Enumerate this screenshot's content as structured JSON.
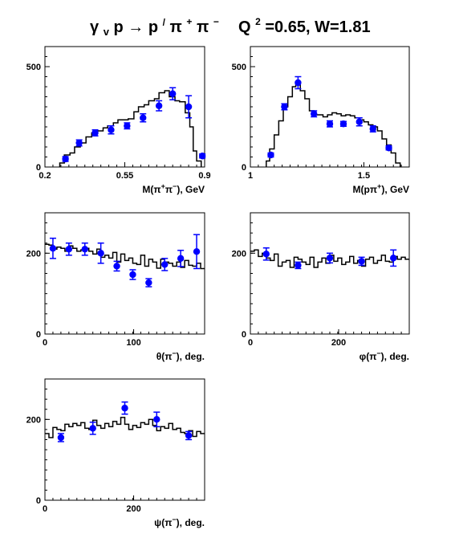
{
  "title": {
    "reaction_lhs": "γ",
    "reaction_lhs_sub": "v",
    "reaction_mid": "p → p",
    "reaction_prime": "/",
    "reaction_pi1": "π",
    "reaction_pi1_sup": "+",
    "reaction_pi2": "π",
    "reaction_pi2_sup": "−",
    "q2_label": "Q",
    "q2_sup": "2",
    "q2_value": "=0.65, W=1.81"
  },
  "colors": {
    "data_points": "#0000ff",
    "histogram": "#000000"
  },
  "chart_data": [
    {
      "type": "scatter",
      "panel": "m-pipi",
      "xlabel": "M(π+π−), GeV",
      "xlim": [
        0.2,
        0.9
      ],
      "ylim": [
        0,
        600
      ],
      "x_ticks": [
        {
          "v": 0.2,
          "label": "0.2"
        },
        {
          "v": 0.55,
          "label": "0.55"
        },
        {
          "v": 0.9,
          "label": "0.9"
        }
      ],
      "y_ticks": [
        {
          "v": 0,
          "label": "0"
        },
        {
          "v": 500,
          "label": "500"
        }
      ],
      "points": [
        {
          "x": 0.29,
          "y": 40,
          "err": 12
        },
        {
          "x": 0.35,
          "y": 120,
          "err": 15
        },
        {
          "x": 0.42,
          "y": 170,
          "err": 15
        },
        {
          "x": 0.49,
          "y": 185,
          "err": 20
        },
        {
          "x": 0.56,
          "y": 205,
          "err": 15
        },
        {
          "x": 0.63,
          "y": 245,
          "err": 20
        },
        {
          "x": 0.7,
          "y": 305,
          "err": 25
        },
        {
          "x": 0.76,
          "y": 365,
          "err": 30
        },
        {
          "x": 0.83,
          "y": 300,
          "err": 55
        },
        {
          "x": 0.89,
          "y": 55,
          "err": 10
        }
      ],
      "histogram": [
        {
          "x0": 0.265,
          "x1": 0.285,
          "y": 20
        },
        {
          "x0": 0.285,
          "x1": 0.31,
          "y": 60
        },
        {
          "x0": 0.31,
          "x1": 0.33,
          "y": 70
        },
        {
          "x0": 0.33,
          "x1": 0.355,
          "y": 100
        },
        {
          "x0": 0.355,
          "x1": 0.38,
          "y": 120
        },
        {
          "x0": 0.38,
          "x1": 0.405,
          "y": 150
        },
        {
          "x0": 0.405,
          "x1": 0.43,
          "y": 170
        },
        {
          "x0": 0.43,
          "x1": 0.455,
          "y": 180
        },
        {
          "x0": 0.455,
          "x1": 0.475,
          "y": 195
        },
        {
          "x0": 0.475,
          "x1": 0.5,
          "y": 205
        },
        {
          "x0": 0.5,
          "x1": 0.52,
          "y": 220
        },
        {
          "x0": 0.52,
          "x1": 0.545,
          "y": 235
        },
        {
          "x0": 0.545,
          "x1": 0.565,
          "y": 235
        },
        {
          "x0": 0.565,
          "x1": 0.59,
          "y": 240
        },
        {
          "x0": 0.59,
          "x1": 0.61,
          "y": 275
        },
        {
          "x0": 0.61,
          "x1": 0.635,
          "y": 300
        },
        {
          "x0": 0.635,
          "x1": 0.655,
          "y": 310
        },
        {
          "x0": 0.655,
          "x1": 0.68,
          "y": 330
        },
        {
          "x0": 0.68,
          "x1": 0.7,
          "y": 340
        },
        {
          "x0": 0.7,
          "x1": 0.725,
          "y": 370
        },
        {
          "x0": 0.725,
          "x1": 0.745,
          "y": 380
        },
        {
          "x0": 0.745,
          "x1": 0.77,
          "y": 350
        },
        {
          "x0": 0.77,
          "x1": 0.79,
          "y": 330
        },
        {
          "x0": 0.79,
          "x1": 0.815,
          "y": 325
        },
        {
          "x0": 0.815,
          "x1": 0.835,
          "y": 270
        },
        {
          "x0": 0.835,
          "x1": 0.85,
          "y": 200
        },
        {
          "x0": 0.85,
          "x1": 0.865,
          "y": 80
        },
        {
          "x0": 0.865,
          "x1": 0.885,
          "y": 30
        }
      ]
    },
    {
      "type": "scatter",
      "panel": "m-ppi",
      "xlabel": "M(pπ+), GeV",
      "xlim": [
        1.0,
        1.7
      ],
      "ylim": [
        0,
        600
      ],
      "x_ticks": [
        {
          "v": 1.0,
          "label": "1"
        },
        {
          "v": 1.5,
          "label": "1.5"
        }
      ],
      "y_ticks": [
        {
          "v": 0,
          "label": "0"
        },
        {
          "v": 500,
          "label": "500"
        }
      ],
      "points": [
        {
          "x": 1.09,
          "y": 60,
          "err": 10
        },
        {
          "x": 1.15,
          "y": 300,
          "err": 15
        },
        {
          "x": 1.21,
          "y": 420,
          "err": 30
        },
        {
          "x": 1.28,
          "y": 265,
          "err": 15
        },
        {
          "x": 1.35,
          "y": 215,
          "err": 15
        },
        {
          "x": 1.41,
          "y": 215,
          "err": 12
        },
        {
          "x": 1.48,
          "y": 225,
          "err": 20
        },
        {
          "x": 1.54,
          "y": 190,
          "err": 15
        },
        {
          "x": 1.61,
          "y": 95,
          "err": 10
        }
      ],
      "histogram": [
        {
          "x0": 1.07,
          "x1": 1.085,
          "y": 30
        },
        {
          "x0": 1.085,
          "x1": 1.105,
          "y": 90
        },
        {
          "x0": 1.105,
          "x1": 1.125,
          "y": 160
        },
        {
          "x0": 1.125,
          "x1": 1.145,
          "y": 230
        },
        {
          "x0": 1.145,
          "x1": 1.165,
          "y": 300
        },
        {
          "x0": 1.165,
          "x1": 1.185,
          "y": 350
        },
        {
          "x0": 1.185,
          "x1": 1.2,
          "y": 400
        },
        {
          "x0": 1.2,
          "x1": 1.22,
          "y": 410
        },
        {
          "x0": 1.22,
          "x1": 1.24,
          "y": 380
        },
        {
          "x0": 1.24,
          "x1": 1.26,
          "y": 340
        },
        {
          "x0": 1.26,
          "x1": 1.28,
          "y": 280
        },
        {
          "x0": 1.28,
          "x1": 1.3,
          "y": 260
        },
        {
          "x0": 1.3,
          "x1": 1.32,
          "y": 260
        },
        {
          "x0": 1.32,
          "x1": 1.34,
          "y": 250
        },
        {
          "x0": 1.34,
          "x1": 1.36,
          "y": 260
        },
        {
          "x0": 1.36,
          "x1": 1.38,
          "y": 270
        },
        {
          "x0": 1.38,
          "x1": 1.4,
          "y": 265
        },
        {
          "x0": 1.4,
          "x1": 1.42,
          "y": 255
        },
        {
          "x0": 1.42,
          "x1": 1.44,
          "y": 260
        },
        {
          "x0": 1.44,
          "x1": 1.46,
          "y": 255
        },
        {
          "x0": 1.46,
          "x1": 1.48,
          "y": 245
        },
        {
          "x0": 1.48,
          "x1": 1.5,
          "y": 235
        },
        {
          "x0": 1.5,
          "x1": 1.52,
          "y": 225
        },
        {
          "x0": 1.52,
          "x1": 1.54,
          "y": 210
        },
        {
          "x0": 1.54,
          "x1": 1.56,
          "y": 200
        },
        {
          "x0": 1.56,
          "x1": 1.58,
          "y": 180
        },
        {
          "x0": 1.58,
          "x1": 1.6,
          "y": 140
        },
        {
          "x0": 1.6,
          "x1": 1.62,
          "y": 110
        },
        {
          "x0": 1.62,
          "x1": 1.64,
          "y": 70
        },
        {
          "x0": 1.64,
          "x1": 1.66,
          "y": 20
        }
      ]
    },
    {
      "type": "scatter",
      "panel": "theta",
      "xlabel": "θ(π−), deg.",
      "xlim": [
        0,
        180
      ],
      "ylim": [
        0,
        300
      ],
      "x_ticks": [
        {
          "v": 0,
          "label": "0"
        },
        {
          "v": 100,
          "label": "100"
        }
      ],
      "y_ticks": [
        {
          "v": 0,
          "label": "0"
        },
        {
          "v": 200,
          "label": "200"
        }
      ],
      "points": [
        {
          "x": 9,
          "y": 212,
          "err": 25
        },
        {
          "x": 27,
          "y": 210,
          "err": 15
        },
        {
          "x": 45,
          "y": 210,
          "err": 15
        },
        {
          "x": 63,
          "y": 200,
          "err": 25
        },
        {
          "x": 81,
          "y": 168,
          "err": 12
        },
        {
          "x": 99,
          "y": 147,
          "err": 12
        },
        {
          "x": 117,
          "y": 127,
          "err": 10
        },
        {
          "x": 135,
          "y": 172,
          "err": 15
        },
        {
          "x": 153,
          "y": 187,
          "err": 20
        },
        {
          "x": 171,
          "y": 204,
          "err": 42
        }
      ],
      "histogram_step": 4.5,
      "histogram_values": [
        222,
        220,
        210,
        215,
        212,
        205,
        218,
        212,
        205,
        208,
        212,
        205,
        198,
        210,
        190,
        195,
        188,
        202,
        178,
        198,
        182,
        188,
        175,
        172,
        195,
        168,
        185,
        178,
        163,
        185,
        178,
        175,
        168,
        178,
        165,
        182,
        170,
        168,
        175,
        162
      ]
    },
    {
      "type": "scatter",
      "panel": "phi",
      "xlabel": "φ(π−), deg.",
      "xlim": [
        0,
        360
      ],
      "ylim": [
        0,
        300
      ],
      "x_ticks": [
        {
          "v": 0,
          "label": "0"
        },
        {
          "v": 200,
          "label": "200"
        }
      ],
      "y_ticks": [
        {
          "v": 0,
          "label": "0"
        },
        {
          "v": 200,
          "label": "200"
        }
      ],
      "points": [
        {
          "x": 36,
          "y": 198,
          "err": 15
        },
        {
          "x": 108,
          "y": 170,
          "err": 8
        },
        {
          "x": 180,
          "y": 188,
          "err": 12
        },
        {
          "x": 252,
          "y": 180,
          "err": 10
        },
        {
          "x": 324,
          "y": 188,
          "err": 20
        }
      ],
      "histogram_step": 9,
      "histogram_values": [
        205,
        208,
        192,
        200,
        188,
        182,
        198,
        168,
        178,
        182,
        165,
        190,
        185,
        178,
        172,
        190,
        165,
        178,
        188,
        175,
        195,
        180,
        188,
        172,
        178,
        192,
        175,
        182,
        168,
        185,
        190,
        175,
        182,
        195,
        180,
        178,
        192,
        185,
        190,
        185
      ]
    },
    {
      "type": "scatter",
      "panel": "psi",
      "xlabel": "ψ(π−), deg.",
      "xlim": [
        0,
        360
      ],
      "ylim": [
        0,
        300
      ],
      "x_ticks": [
        {
          "v": 0,
          "label": "0"
        },
        {
          "v": 200,
          "label": "200"
        }
      ],
      "y_ticks": [
        {
          "v": 0,
          "label": "0"
        },
        {
          "v": 200,
          "label": "200"
        }
      ],
      "points": [
        {
          "x": 36,
          "y": 155,
          "err": 10
        },
        {
          "x": 108,
          "y": 178,
          "err": 15
        },
        {
          "x": 180,
          "y": 228,
          "err": 15
        },
        {
          "x": 252,
          "y": 200,
          "err": 18
        },
        {
          "x": 324,
          "y": 160,
          "err": 10
        }
      ],
      "histogram_step": 9,
      "histogram_values": [
        165,
        155,
        180,
        175,
        172,
        188,
        182,
        190,
        185,
        192,
        178,
        175,
        198,
        185,
        178,
        190,
        182,
        195,
        188,
        205,
        188,
        175,
        185,
        180,
        192,
        188,
        200,
        185,
        172,
        182,
        178,
        190,
        175,
        178,
        168,
        165,
        172,
        158,
        170,
        165
      ]
    }
  ]
}
